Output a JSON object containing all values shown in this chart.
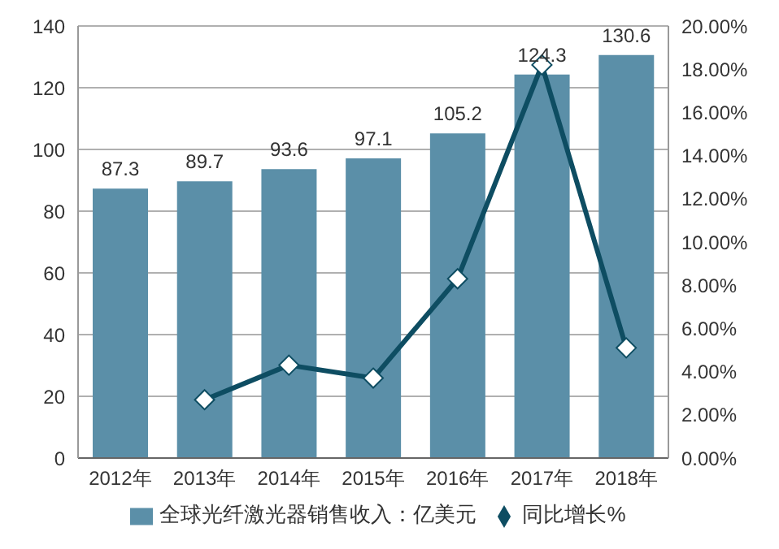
{
  "chart_data": {
    "type": "bar",
    "categories": [
      "2012年",
      "2013年",
      "2014年",
      "2015年",
      "2016年",
      "2017年",
      "2018年"
    ],
    "series": [
      {
        "name": "全球光纤激光器销售收入：亿美元",
        "color": "#5b8fa8",
        "values": [
          87.3,
          89.7,
          93.6,
          97.1,
          105.2,
          124.3,
          130.6
        ],
        "data_labels": true
      },
      {
        "name": "同比增长%",
        "type": "line",
        "axis": "y2",
        "color": "#0e4d62",
        "values": [
          null,
          2.7,
          4.3,
          3.7,
          8.3,
          18.2,
          5.1
        ],
        "marker": "diamond"
      }
    ],
    "ylim": [
      0,
      140
    ],
    "yticks": [
      0,
      20,
      40,
      60,
      80,
      100,
      120,
      140
    ],
    "y2lim": [
      0,
      20
    ],
    "y2ticks": [
      {
        "value": 0,
        "label": "0.00%"
      },
      {
        "value": 2,
        "label": "2.00%"
      },
      {
        "value": 4,
        "label": "4.00%"
      },
      {
        "value": 6,
        "label": "6.00%"
      },
      {
        "value": 8,
        "label": "8.00%"
      },
      {
        "value": 10,
        "label": "10.00%"
      },
      {
        "value": 12,
        "label": "12.00%"
      },
      {
        "value": 14,
        "label": "14.00%"
      },
      {
        "value": 16,
        "label": "16.00%"
      },
      {
        "value": 18,
        "label": "18.00%"
      },
      {
        "value": 20,
        "label": "20.00%"
      }
    ],
    "grid": "y",
    "legend": "bottom"
  }
}
